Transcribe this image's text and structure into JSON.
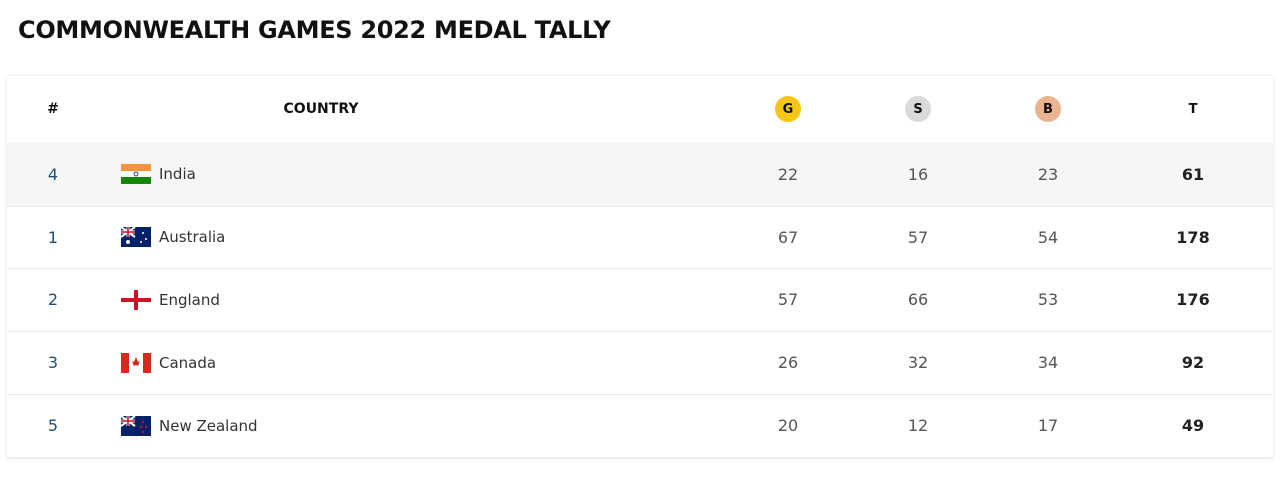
{
  "header": {
    "title": "COMMONWEALTH GAMES 2022 MEDAL TALLY"
  },
  "table": {
    "headers": [
      "#",
      "COUNTRY",
      "G",
      "S",
      "B",
      "T"
    ],
    "rows": [
      [
        4,
        "India",
        22,
        16,
        23,
        61
      ],
      [
        1,
        "Australia",
        67,
        57,
        54,
        178
      ],
      [
        2,
        "England",
        57,
        66,
        53,
        176
      ],
      [
        3,
        "Canada",
        26,
        32,
        34,
        92
      ],
      [
        5,
        "New Zealand",
        20,
        12,
        17,
        49
      ]
    ]
  }
}
